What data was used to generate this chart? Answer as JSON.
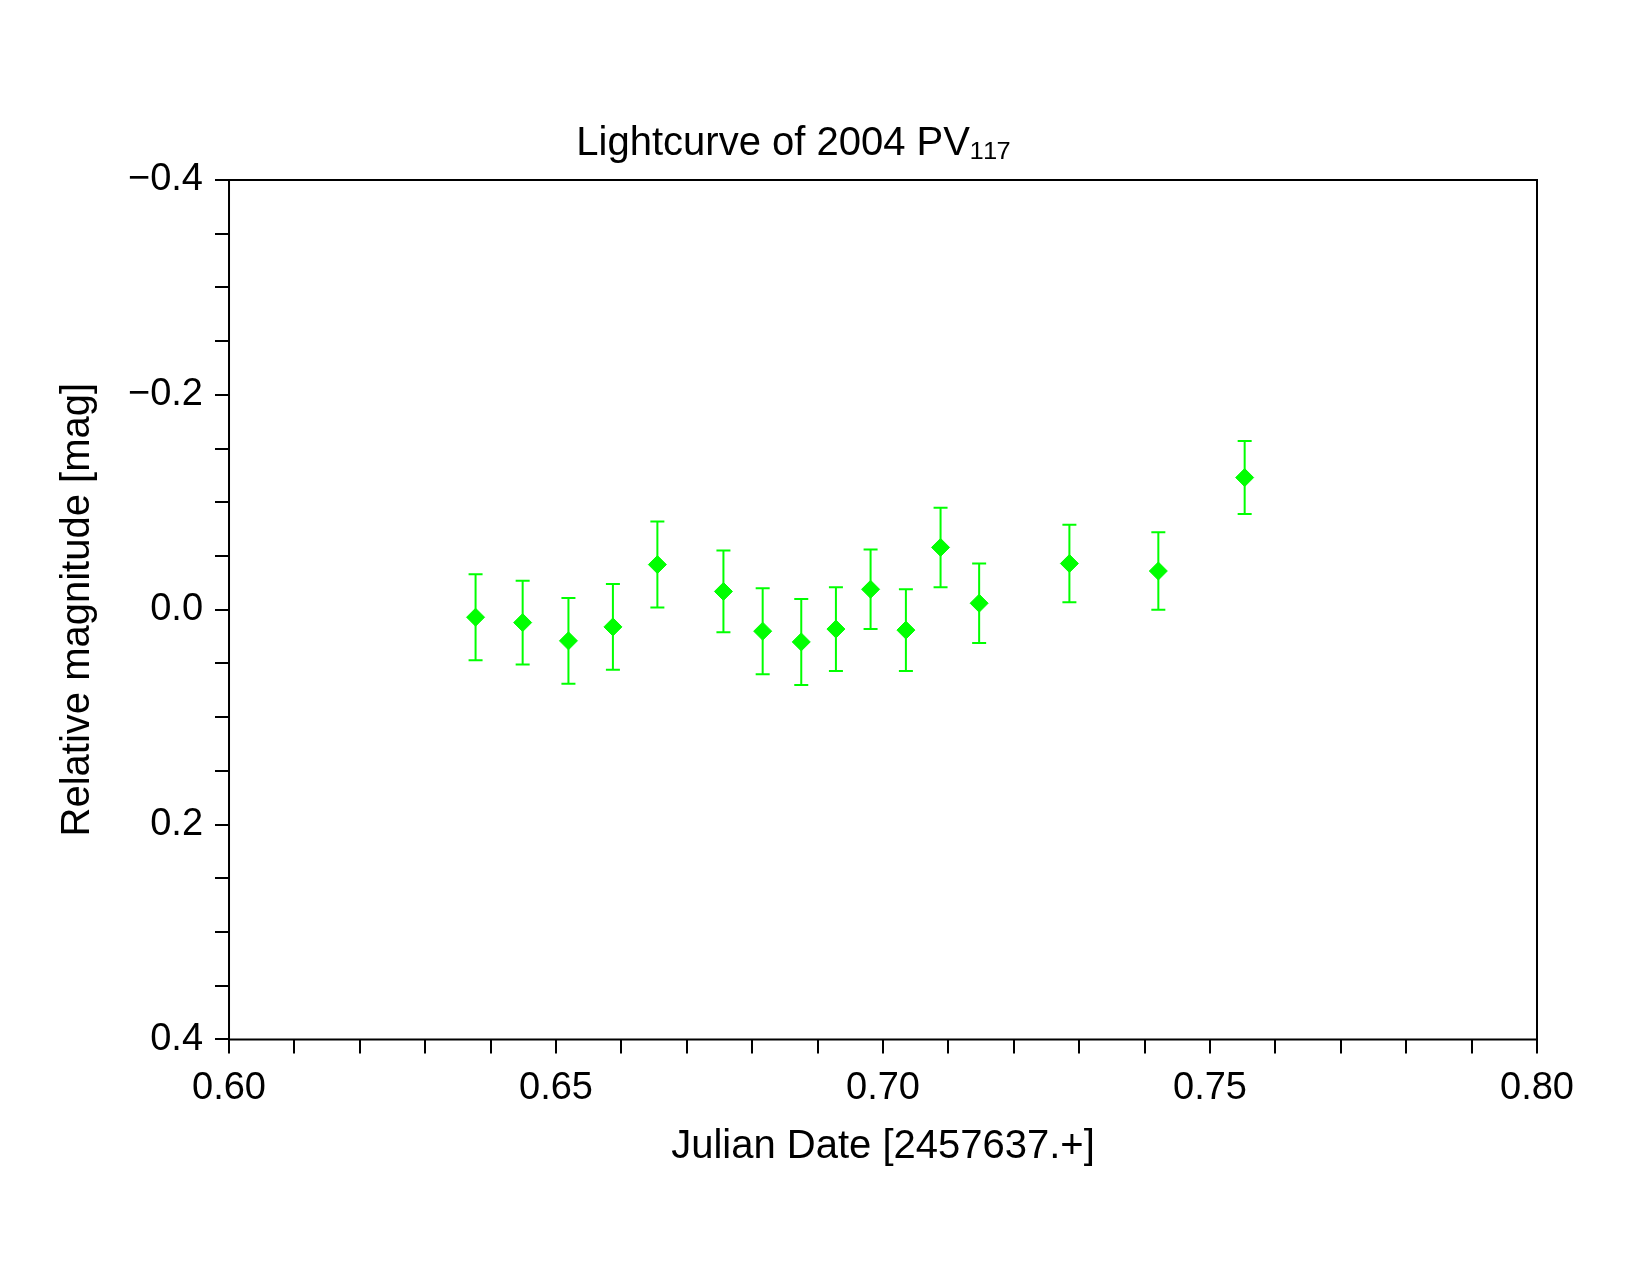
{
  "chart_data": {
    "type": "scatter",
    "title": "Lightcurve of 2004 PV₁₁₇",
    "xlabel": "Julian Date [2457637.+]",
    "ylabel": "Relative magnitude [mag]",
    "marker": "diamond",
    "grid": false,
    "legend": false,
    "xlim": [
      0.6,
      0.8
    ],
    "xticks": [
      {
        "value": 0.6,
        "label": "0.60"
      },
      {
        "value": 0.61,
        "label": null
      },
      {
        "value": 0.62,
        "label": null
      },
      {
        "value": 0.63,
        "label": null
      },
      {
        "value": 0.64,
        "label": null
      },
      {
        "value": 0.65,
        "label": "0.65"
      },
      {
        "value": 0.66,
        "label": null
      },
      {
        "value": 0.67,
        "label": null
      },
      {
        "value": 0.68,
        "label": null
      },
      {
        "value": 0.69,
        "label": null
      },
      {
        "value": 0.7,
        "label": "0.70"
      },
      {
        "value": 0.71,
        "label": null
      },
      {
        "value": 0.72,
        "label": null
      },
      {
        "value": 0.73,
        "label": null
      },
      {
        "value": 0.74,
        "label": null
      },
      {
        "value": 0.75,
        "label": "0.75"
      },
      {
        "value": 0.76,
        "label": null
      },
      {
        "value": 0.77,
        "label": null
      },
      {
        "value": 0.78,
        "label": null
      },
      {
        "value": 0.79,
        "label": null
      },
      {
        "value": 0.8,
        "label": "0.80"
      }
    ],
    "ylim": [
      0.4,
      -0.4
    ],
    "yticks": [
      {
        "value": -0.4,
        "label": "−0.4"
      },
      {
        "value": -0.35,
        "label": null
      },
      {
        "value": -0.3,
        "label": null
      },
      {
        "value": -0.25,
        "label": null
      },
      {
        "value": -0.2,
        "label": "−0.2"
      },
      {
        "value": -0.15,
        "label": null
      },
      {
        "value": -0.1,
        "label": null
      },
      {
        "value": -0.05,
        "label": null
      },
      {
        "value": 0.0,
        "label": "0.0"
      },
      {
        "value": 0.05,
        "label": null
      },
      {
        "value": 0.1,
        "label": null
      },
      {
        "value": 0.15,
        "label": null
      },
      {
        "value": 0.2,
        "label": "0.2"
      },
      {
        "value": 0.25,
        "label": null
      },
      {
        "value": 0.3,
        "label": null
      },
      {
        "value": 0.35,
        "label": null
      },
      {
        "value": 0.4,
        "label": "0.4"
      }
    ],
    "series": [
      {
        "color": "#00ff00",
        "x": [
          0.6377,
          0.6449,
          0.6519,
          0.6587,
          0.6655,
          0.6756,
          0.6816,
          0.6875,
          0.6928,
          0.6981,
          0.7035,
          0.7088,
          0.7147,
          0.7285,
          0.7421,
          0.7553
        ],
        "values": [
          0.007,
          0.012,
          0.029,
          0.016,
          -0.042,
          -0.017,
          0.02,
          0.03,
          0.018,
          -0.019,
          0.019,
          -0.058,
          -0.006,
          -0.043,
          -0.036,
          -0.123
        ],
        "errors": [
          0.04,
          0.039,
          0.04,
          0.04,
          0.04,
          0.038,
          0.04,
          0.04,
          0.039,
          0.037,
          0.038,
          0.037,
          0.037,
          0.036,
          0.036,
          0.034
        ]
      }
    ]
  }
}
